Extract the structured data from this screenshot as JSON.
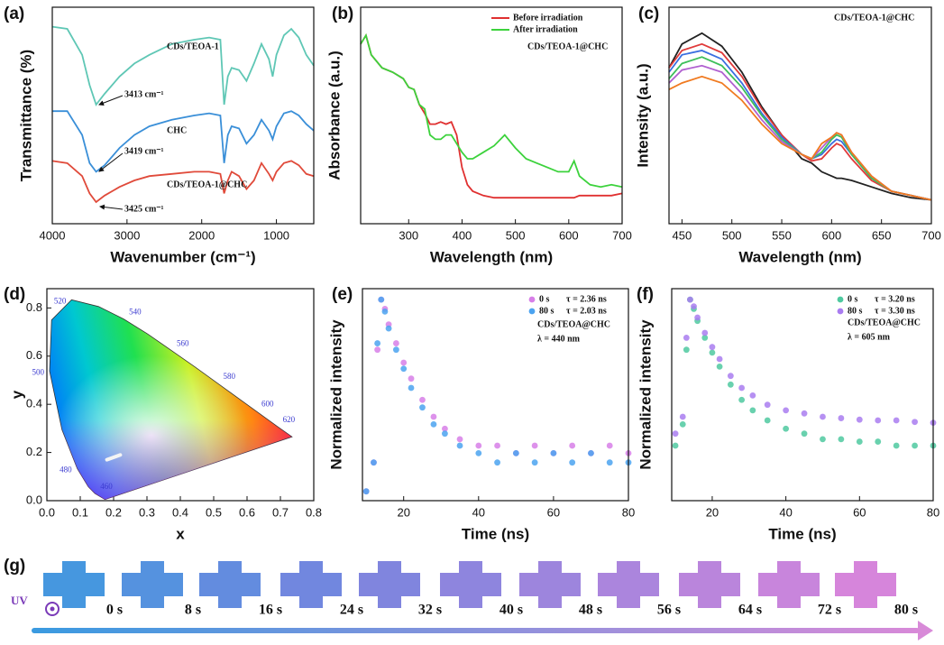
{
  "chart_data": [
    {
      "type": "line",
      "panel": "(a)",
      "x_label": "Wavenumber (cm⁻¹)",
      "y_label": "Transmittance (%)",
      "xlim": [
        4000,
        500
      ],
      "ylim": [
        0,
        100
      ],
      "xticks": [
        4000,
        3000,
        2000,
        1000
      ],
      "x": [
        4000,
        3800,
        3600,
        3500,
        3413,
        3300,
        3100,
        2900,
        2700,
        2400,
        2100,
        1900,
        1750,
        1700,
        1650,
        1600,
        1500,
        1400,
        1300,
        1200,
        1100,
        1050,
        1000,
        900,
        800,
        700,
        600,
        500
      ],
      "series": [
        {
          "color": "#5fc7b5",
          "values": [
            91,
            90,
            78,
            64,
            55,
            60,
            68,
            74,
            78,
            83,
            85,
            86,
            85,
            55,
            68,
            72,
            71,
            66,
            74,
            83,
            76,
            68,
            78,
            87,
            90,
            86,
            78,
            73
          ]
        },
        {
          "color": "#3a8fd8",
          "values": [
            52,
            52,
            41,
            28,
            24,
            27,
            35,
            41,
            45,
            48,
            50,
            51,
            50,
            28,
            41,
            45,
            44,
            37,
            41,
            48,
            43,
            39,
            45,
            51,
            52,
            50,
            46,
            43
          ]
        },
        {
          "color": "#e04a3a",
          "values": [
            29,
            28,
            22,
            14,
            10,
            13,
            17,
            20,
            22,
            23,
            24,
            24,
            23,
            14,
            20,
            24,
            22,
            16,
            20,
            28,
            23,
            20,
            24,
            28,
            29,
            27,
            23,
            22
          ]
        }
      ],
      "annotations": [
        "CDs/TEOA-1",
        "CHC",
        "CDs/TEOA-1@CHC",
        "3413 cm⁻¹",
        "3419 cm⁻¹",
        "3425 cm⁻¹"
      ]
    },
    {
      "type": "line",
      "panel": "(b)",
      "x_label": "Wavelength (nm)",
      "y_label": "Absorbance (a.u.)",
      "xlim": [
        210,
        700
      ],
      "ylim": [
        0,
        100
      ],
      "xticks": [
        300,
        400,
        500,
        600,
        700
      ],
      "x": [
        210,
        220,
        230,
        250,
        270,
        290,
        300,
        310,
        320,
        330,
        340,
        350,
        360,
        370,
        380,
        390,
        400,
        410,
        420,
        440,
        460,
        480,
        500,
        520,
        540,
        560,
        580,
        600,
        610,
        620,
        640,
        660,
        680,
        700
      ],
      "series": [
        {
          "name": "Before irradiation",
          "color": "#e03030",
          "values": [
            83,
            87,
            78,
            72,
            70,
            67,
            63,
            62,
            55,
            51,
            46,
            46,
            47,
            46,
            47,
            41,
            26,
            18,
            15,
            13,
            12,
            12,
            12,
            12,
            12,
            12,
            12,
            12,
            12,
            13,
            13,
            13,
            13,
            14
          ]
        },
        {
          "name": "After irradiation",
          "color": "#3cd23c",
          "values": [
            83,
            87,
            78,
            72,
            70,
            67,
            63,
            62,
            55,
            53,
            41,
            39,
            39,
            41,
            41,
            37,
            33,
            30,
            30,
            33,
            36,
            41,
            35,
            30,
            28,
            26,
            24,
            24,
            29,
            22,
            18,
            17,
            18,
            17
          ]
        }
      ],
      "annotations": [
        "CDs/TEOA-1@CHC"
      ]
    },
    {
      "type": "line",
      "panel": "(c)",
      "x_label": "Wavelength (nm)",
      "y_label": "Intensity (a.u.)",
      "xlim": [
        437,
        700
      ],
      "ylim": [
        0,
        100
      ],
      "xticks": [
        450,
        500,
        550,
        600,
        650,
        700
      ],
      "x": [
        437,
        450,
        470,
        490,
        510,
        530,
        550,
        570,
        580,
        590,
        600,
        605,
        610,
        620,
        640,
        660,
        680,
        700
      ],
      "series": [
        {
          "color": "#222222",
          "values": [
            72,
            83,
            88,
            82,
            70,
            54,
            41,
            30,
            28,
            24,
            22,
            21,
            21,
            20,
            17,
            14,
            12,
            11
          ]
        },
        {
          "color": "#e03a3a",
          "values": [
            72,
            80,
            83,
            79,
            68,
            53,
            41,
            32,
            29,
            30,
            35,
            37,
            36,
            30,
            20,
            15,
            13,
            11
          ]
        },
        {
          "color": "#3a6fe0",
          "values": [
            70,
            78,
            80,
            76,
            65,
            51,
            40,
            32,
            30,
            32,
            37,
            39,
            38,
            32,
            21,
            15,
            13,
            11
          ]
        },
        {
          "color": "#3cbf5a",
          "values": [
            67,
            74,
            77,
            73,
            63,
            50,
            39,
            32,
            30,
            33,
            39,
            41,
            40,
            32,
            21,
            15,
            13,
            11
          ]
        },
        {
          "color": "#b060d0",
          "values": [
            65,
            71,
            73,
            70,
            60,
            48,
            38,
            32,
            30,
            35,
            40,
            42,
            41,
            33,
            22,
            15,
            13,
            11
          ]
        },
        {
          "color": "#f07a20",
          "values": [
            62,
            65,
            68,
            65,
            57,
            46,
            37,
            32,
            30,
            37,
            40,
            42,
            41,
            33,
            22,
            15,
            13,
            11
          ]
        }
      ],
      "annotations": [
        "CDs/TEOA-1@CHC"
      ]
    },
    {
      "type": "cie",
      "panel": "(d)",
      "x_label": "x",
      "y_label": "y",
      "xlim": [
        0,
        0.8
      ],
      "ylim": [
        0,
        0.88
      ],
      "xticks": [
        {
          "value": 0,
          "label": "0.0"
        },
        {
          "value": 0.1,
          "label": "0.1"
        },
        {
          "value": 0.2,
          "label": "0.2"
        },
        {
          "value": 0.3,
          "label": "0.3"
        },
        {
          "value": 0.4,
          "label": "0.4"
        },
        {
          "value": 0.5,
          "label": "0.5"
        },
        {
          "value": 0.6,
          "label": "0.6"
        },
        {
          "value": 0.7,
          "label": "0.7"
        },
        {
          "value": 0.8,
          "label": "0.8"
        }
      ],
      "yticks": [
        {
          "value": 0,
          "label": "0.0"
        },
        {
          "value": 0.2,
          "label": "0.2"
        },
        {
          "value": 0.4,
          "label": "0.4"
        },
        {
          "value": 0.6,
          "label": "0.6"
        },
        {
          "value": 0.8,
          "label": "0.8"
        }
      ],
      "locus": {
        "wavelengths": [
          null,
          460,
          null,
          480,
          null,
          500,
          null,
          520,
          null,
          540,
          null,
          560,
          null,
          580,
          null,
          600,
          620,
          null
        ],
        "x": [
          0.174,
          0.144,
          0.124,
          0.091,
          0.045,
          0.008,
          0.014,
          0.074,
          0.155,
          0.23,
          0.302,
          0.373,
          0.444,
          0.512,
          0.575,
          0.627,
          0.691,
          0.735
        ],
        "y": [
          0.005,
          0.03,
          0.058,
          0.133,
          0.295,
          0.538,
          0.75,
          0.834,
          0.806,
          0.754,
          0.692,
          0.624,
          0.555,
          0.487,
          0.424,
          0.372,
          0.308,
          0.265
        ]
      },
      "points": {
        "x": [
          0.18,
          0.22
        ],
        "y": [
          0.17,
          0.19
        ]
      }
    },
    {
      "type": "scatter",
      "panel": "(e)",
      "x_label": "Time (ns)",
      "y_label": "Normalized intensity",
      "log": true,
      "xlim": [
        9,
        80
      ],
      "ylim": [
        0.008,
        1.3
      ],
      "xticks": [
        20,
        40,
        60,
        80
      ],
      "x": [
        10,
        12,
        13,
        14,
        15,
        16,
        18,
        20,
        22,
        25,
        28,
        31,
        35,
        40,
        45,
        50,
        55,
        60,
        65,
        70,
        75,
        80
      ],
      "series": [
        {
          "name": "0 s",
          "tau": "τ = 2.36 ns",
          "color": "#d77fe8",
          "values": [
            0.01,
            0.02,
            0.3,
            1,
            0.8,
            0.55,
            0.35,
            0.22,
            0.15,
            0.09,
            0.06,
            0.045,
            0.035,
            0.03,
            0.03,
            0.025,
            0.03,
            0.025,
            0.03,
            0.025,
            0.03,
            0.025
          ]
        },
        {
          "name": "80 s",
          "tau": "τ = 2.03 ns",
          "color": "#4ba3f0",
          "values": [
            0.01,
            0.02,
            0.35,
            1,
            0.75,
            0.5,
            0.3,
            0.19,
            0.12,
            0.075,
            0.05,
            0.04,
            0.03,
            0.025,
            0.02,
            0.025,
            0.02,
            0.025,
            0.02,
            0.025,
            0.02,
            0.02
          ]
        }
      ],
      "annotations": [
        "CDs/TEOA@CHC",
        "λ = 440 nm"
      ]
    },
    {
      "type": "scatter",
      "panel": "(f)",
      "x_label": "Time (ns)",
      "y_label": "Normalized intensity",
      "log": true,
      "xlim": [
        9,
        80
      ],
      "ylim": [
        0.008,
        1.3
      ],
      "xticks": [
        20,
        40,
        60,
        80
      ],
      "x": [
        10,
        12,
        13,
        14,
        15,
        16,
        18,
        20,
        22,
        25,
        28,
        31,
        35,
        40,
        45,
        50,
        55,
        60,
        65,
        70,
        75,
        80
      ],
      "series": [
        {
          "name": "0 s",
          "tau": "τ = 3.20 ns",
          "color": "#4fc9a0",
          "values": [
            0.03,
            0.05,
            0.3,
            1,
            0.8,
            0.6,
            0.4,
            0.28,
            0.2,
            0.13,
            0.09,
            0.07,
            0.055,
            0.045,
            0.04,
            0.035,
            0.035,
            0.033,
            0.033,
            0.03,
            0.03,
            0.03
          ]
        },
        {
          "name": "80 s",
          "tau": "τ = 3.30 ns",
          "color": "#a97cf0",
          "values": [
            0.04,
            0.06,
            0.4,
            1,
            0.85,
            0.65,
            0.45,
            0.32,
            0.24,
            0.16,
            0.12,
            0.1,
            0.08,
            0.07,
            0.065,
            0.06,
            0.058,
            0.056,
            0.055,
            0.055,
            0.053,
            0.052
          ]
        }
      ],
      "annotations": [
        "CDs/TEOA@CHC",
        "λ = 605 nm"
      ]
    }
  ],
  "panel_g": {
    "panel": "(g)",
    "uv": "UV",
    "times": [
      "0 s",
      "8 s",
      "16 s",
      "24 s",
      "32 s",
      "40 s",
      "48 s",
      "56 s",
      "64 s",
      "72 s",
      "80 s"
    ]
  }
}
